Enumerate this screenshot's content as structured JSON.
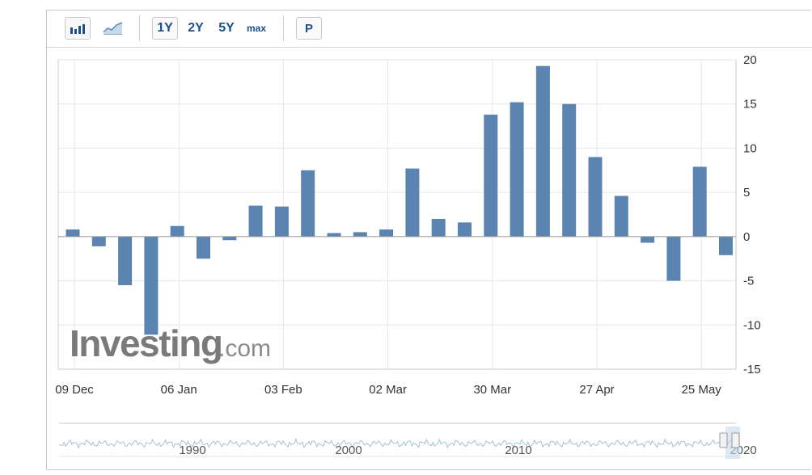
{
  "toolbar": {
    "bar_chart_icon": "bar-chart-icon",
    "line_chart_icon": "line-chart-icon",
    "range_1y": "1Y",
    "range_2y": "2Y",
    "range_5y": "5Y",
    "range_max": "max",
    "p_button": "P"
  },
  "watermark": {
    "brand": "Investing",
    "suffix": ".com"
  },
  "colors": {
    "bar": "#5b84b1",
    "grid": "#e6e6e6",
    "axis_text": "#333333",
    "navigator_line": "#9fc2de"
  },
  "chart_data": {
    "type": "bar",
    "title": "",
    "xlabel": "",
    "ylabel": "",
    "x": [
      "2019-12-09",
      "2019-12-16",
      "2019-12-23",
      "2019-12-30",
      "2020-01-06",
      "2020-01-13",
      "2020-01-20",
      "2020-01-27",
      "2020-02-03",
      "2020-02-10",
      "2020-02-17",
      "2020-02-24",
      "2020-03-02",
      "2020-03-09",
      "2020-03-16",
      "2020-03-23",
      "2020-03-30",
      "2020-04-06",
      "2020-04-13",
      "2020-04-20",
      "2020-04-27",
      "2020-05-04",
      "2020-05-11",
      "2020-05-18",
      "2020-05-25",
      "2020-06-01"
    ],
    "values": [
      0.8,
      -1.1,
      -5.5,
      -11.1,
      1.2,
      -2.5,
      -0.4,
      3.5,
      3.4,
      7.5,
      0.4,
      0.5,
      0.8,
      7.7,
      2.0,
      1.6,
      13.8,
      15.2,
      19.3,
      15.0,
      9.0,
      4.6,
      -0.7,
      -5.0,
      7.9,
      -2.1
    ],
    "ylim": [
      -15,
      20
    ],
    "y_ticks": [
      "20",
      "15",
      "10",
      "5",
      "0",
      "-5",
      "-10",
      "-15"
    ],
    "x_tick_labels": [
      "09 Dec",
      "06 Jan",
      "03 Feb",
      "02 Mar",
      "30 Mar",
      "27 Apr",
      "25 May"
    ],
    "y_axis_position": "right",
    "grid": true,
    "navigator": {
      "tick_labels": [
        "1990",
        "2000",
        "2010",
        "2020"
      ]
    }
  }
}
